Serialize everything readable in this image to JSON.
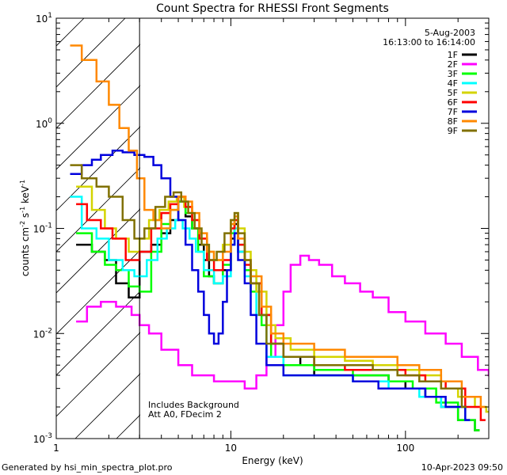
{
  "chart_data": {
    "type": "line",
    "title": "Count Spectra for RHESSI Front Segments",
    "xlabel": "Energy (keV)",
    "ylabel_parts": [
      "counts cm",
      "-2",
      " s",
      "-1",
      " keV",
      "-1"
    ],
    "xscale": "log",
    "yscale": "log",
    "xlim": [
      1,
      300
    ],
    "ylim": [
      0.001,
      10
    ],
    "x_ticks": [
      {
        "value": 1,
        "label": "1"
      },
      {
        "value": 10,
        "label": "10"
      },
      {
        "value": 100,
        "label": "100"
      }
    ],
    "y_ticks": [
      {
        "value": 10,
        "base": "10",
        "exp": "1"
      },
      {
        "value": 1,
        "base": "10",
        "exp": "0"
      },
      {
        "value": 0.1,
        "base": "10",
        "exp": "-1"
      },
      {
        "value": 0.01,
        "base": "10",
        "exp": "-2"
      },
      {
        "value": 0.001,
        "base": "10",
        "exp": "-3"
      }
    ],
    "date": "5-Aug-2003",
    "time_range": "16:13:00 to 16:14:00",
    "attenuator_cutoff_kev": 3,
    "annotation_lines": [
      "Includes Background",
      "Att A0, FDecim 2"
    ],
    "legend_position": "top-right",
    "series": [
      {
        "name": "1F",
        "color": "#000000",
        "points": [
          [
            1.3,
            0.07
          ],
          [
            1.6,
            0.06
          ],
          [
            1.9,
            0.05
          ],
          [
            2.2,
            0.03
          ],
          [
            2.6,
            0.022
          ],
          [
            3.0,
            0.06
          ],
          [
            3.5,
            0.07
          ],
          [
            4.0,
            0.09
          ],
          [
            4.5,
            0.12
          ],
          [
            5.0,
            0.18
          ],
          [
            5.5,
            0.13
          ],
          [
            6.0,
            0.1
          ],
          [
            6.5,
            0.07
          ],
          [
            7.0,
            0.05
          ],
          [
            7.5,
            0.035
          ],
          [
            8.0,
            0.03
          ],
          [
            9.0,
            0.04
          ],
          [
            10.0,
            0.08
          ],
          [
            10.5,
            0.11
          ],
          [
            11.0,
            0.06
          ],
          [
            12.0,
            0.04
          ],
          [
            13.0,
            0.03
          ],
          [
            15.0,
            0.015
          ],
          [
            17.0,
            0.008
          ],
          [
            20.0,
            0.006
          ],
          [
            25.0,
            0.005
          ],
          [
            30.0,
            0.004
          ],
          [
            40.0,
            0.004
          ],
          [
            60.0,
            0.004
          ],
          [
            80.0,
            0.0035
          ],
          [
            100.0,
            0.003
          ],
          [
            130.0,
            0.0025
          ],
          [
            160.0,
            0.002
          ],
          [
            200.0,
            0.0015
          ],
          [
            250.0,
            0.0012
          ]
        ]
      },
      {
        "name": "2F",
        "color": "#ff00ff",
        "points": [
          [
            1.3,
            0.013
          ],
          [
            1.5,
            0.018
          ],
          [
            1.8,
            0.02
          ],
          [
            2.2,
            0.018
          ],
          [
            2.7,
            0.015
          ],
          [
            3.0,
            0.012
          ],
          [
            3.4,
            0.01
          ],
          [
            4.0,
            0.007
          ],
          [
            5.0,
            0.005
          ],
          [
            6.0,
            0.004
          ],
          [
            7.0,
            0.004
          ],
          [
            8.0,
            0.0035
          ],
          [
            10.0,
            0.0035
          ],
          [
            12.0,
            0.003
          ],
          [
            14.0,
            0.004
          ],
          [
            16.0,
            0.006
          ],
          [
            18.0,
            0.012
          ],
          [
            20.0,
            0.025
          ],
          [
            22.0,
            0.045
          ],
          [
            25.0,
            0.055
          ],
          [
            28.0,
            0.05
          ],
          [
            32.0,
            0.045
          ],
          [
            38.0,
            0.035
          ],
          [
            45.0,
            0.03
          ],
          [
            55.0,
            0.025
          ],
          [
            65.0,
            0.022
          ],
          [
            80.0,
            0.016
          ],
          [
            100.0,
            0.013
          ],
          [
            130.0,
            0.01
          ],
          [
            170.0,
            0.008
          ],
          [
            210.0,
            0.006
          ],
          [
            260.0,
            0.0045
          ],
          [
            300.0,
            0.004
          ]
        ]
      },
      {
        "name": "3F",
        "color": "#00ff00",
        "points": [
          [
            1.3,
            0.09
          ],
          [
            1.6,
            0.06
          ],
          [
            1.9,
            0.045
          ],
          [
            2.2,
            0.04
          ],
          [
            2.6,
            0.028
          ],
          [
            3.0,
            0.025
          ],
          [
            3.5,
            0.06
          ],
          [
            4.0,
            0.11
          ],
          [
            4.5,
            0.15
          ],
          [
            5.0,
            0.18
          ],
          [
            5.5,
            0.14
          ],
          [
            6.0,
            0.1
          ],
          [
            6.5,
            0.06
          ],
          [
            7.0,
            0.035
          ],
          [
            8.0,
            0.03
          ],
          [
            9.0,
            0.045
          ],
          [
            10.0,
            0.09
          ],
          [
            10.5,
            0.12
          ],
          [
            11.0,
            0.07
          ],
          [
            12.0,
            0.04
          ],
          [
            13.0,
            0.025
          ],
          [
            15.0,
            0.012
          ],
          [
            17.0,
            0.006
          ],
          [
            20.0,
            0.005
          ],
          [
            30.0,
            0.0045
          ],
          [
            50.0,
            0.004
          ],
          [
            80.0,
            0.0035
          ],
          [
            110.0,
            0.003
          ],
          [
            150.0,
            0.0022
          ],
          [
            200.0,
            0.0015
          ],
          [
            250.0,
            0.0012
          ]
        ]
      },
      {
        "name": "4F",
        "color": "#00ffff",
        "points": [
          [
            1.2,
            0.2
          ],
          [
            1.4,
            0.1
          ],
          [
            1.7,
            0.08
          ],
          [
            2.0,
            0.05
          ],
          [
            2.4,
            0.04
          ],
          [
            2.8,
            0.035
          ],
          [
            3.3,
            0.05
          ],
          [
            3.8,
            0.08
          ],
          [
            4.3,
            0.1
          ],
          [
            4.8,
            0.12
          ],
          [
            5.3,
            0.1
          ],
          [
            5.8,
            0.08
          ],
          [
            6.3,
            0.06
          ],
          [
            7.0,
            0.04
          ],
          [
            8.0,
            0.03
          ],
          [
            9.0,
            0.035
          ],
          [
            10.0,
            0.07
          ],
          [
            10.5,
            0.1
          ],
          [
            11.0,
            0.06
          ],
          [
            12.0,
            0.035
          ],
          [
            14.0,
            0.015
          ],
          [
            16.0,
            0.006
          ],
          [
            20.0,
            0.004
          ],
          [
            30.0,
            0.004
          ],
          [
            50.0,
            0.0035
          ],
          [
            80.0,
            0.003
          ],
          [
            120.0,
            0.0025
          ],
          [
            160.0,
            0.002
          ],
          [
            220.0,
            0.0015
          ]
        ]
      },
      {
        "name": "5F",
        "color": "#d4d400",
        "points": [
          [
            1.3,
            0.25
          ],
          [
            1.6,
            0.15
          ],
          [
            1.9,
            0.1
          ],
          [
            2.2,
            0.08
          ],
          [
            2.6,
            0.06
          ],
          [
            3.0,
            0.08
          ],
          [
            3.4,
            0.12
          ],
          [
            3.9,
            0.15
          ],
          [
            4.4,
            0.18
          ],
          [
            4.9,
            0.2
          ],
          [
            5.4,
            0.16
          ],
          [
            6.0,
            0.12
          ],
          [
            6.6,
            0.08
          ],
          [
            7.3,
            0.06
          ],
          [
            8.0,
            0.05
          ],
          [
            9.0,
            0.07
          ],
          [
            10.0,
            0.12
          ],
          [
            10.5,
            0.14
          ],
          [
            11.0,
            0.1
          ],
          [
            12.0,
            0.06
          ],
          [
            13.0,
            0.04
          ],
          [
            14.0,
            0.025
          ],
          [
            16.0,
            0.012
          ],
          [
            18.0,
            0.009
          ],
          [
            22.0,
            0.007
          ],
          [
            30.0,
            0.006
          ],
          [
            45.0,
            0.0055
          ],
          [
            65.0,
            0.005
          ],
          [
            90.0,
            0.0045
          ],
          [
            120.0,
            0.004
          ],
          [
            160.0,
            0.003
          ],
          [
            200.0,
            0.0025
          ],
          [
            250.0,
            0.002
          ],
          [
            290.0,
            0.0018
          ]
        ]
      },
      {
        "name": "6F",
        "color": "#ff0000",
        "points": [
          [
            1.3,
            0.17
          ],
          [
            1.5,
            0.12
          ],
          [
            1.8,
            0.1
          ],
          [
            2.1,
            0.08
          ],
          [
            2.5,
            0.05
          ],
          [
            3.0,
            0.06
          ],
          [
            3.5,
            0.1
          ],
          [
            4.0,
            0.14
          ],
          [
            4.5,
            0.17
          ],
          [
            5.0,
            0.2
          ],
          [
            5.5,
            0.16
          ],
          [
            6.0,
            0.12
          ],
          [
            6.6,
            0.08
          ],
          [
            7.3,
            0.05
          ],
          [
            8.0,
            0.04
          ],
          [
            9.0,
            0.05
          ],
          [
            10.0,
            0.1
          ],
          [
            10.5,
            0.12
          ],
          [
            11.0,
            0.07
          ],
          [
            12.0,
            0.045
          ],
          [
            13.0,
            0.03
          ],
          [
            15.0,
            0.015
          ],
          [
            17.0,
            0.008
          ],
          [
            20.0,
            0.006
          ],
          [
            30.0,
            0.005
          ],
          [
            45.0,
            0.0045
          ],
          [
            70.0,
            0.0045
          ],
          [
            100.0,
            0.004
          ],
          [
            130.0,
            0.0035
          ],
          [
            170.0,
            0.003
          ],
          [
            220.0,
            0.002
          ],
          [
            270.0,
            0.0015
          ]
        ]
      },
      {
        "name": "7F",
        "color": "#0000dd",
        "points": [
          [
            1.2,
            0.33
          ],
          [
            1.4,
            0.4
          ],
          [
            1.6,
            0.45
          ],
          [
            1.8,
            0.5
          ],
          [
            2.1,
            0.55
          ],
          [
            2.4,
            0.53
          ],
          [
            2.8,
            0.5
          ],
          [
            3.2,
            0.48
          ],
          [
            3.6,
            0.4
          ],
          [
            4.0,
            0.3
          ],
          [
            4.5,
            0.2
          ],
          [
            5.0,
            0.12
          ],
          [
            5.5,
            0.07
          ],
          [
            6.0,
            0.04
          ],
          [
            6.5,
            0.025
          ],
          [
            7.0,
            0.015
          ],
          [
            7.5,
            0.01
          ],
          [
            8.0,
            0.008
          ],
          [
            8.5,
            0.01
          ],
          [
            9.0,
            0.02
          ],
          [
            9.5,
            0.04
          ],
          [
            10.0,
            0.07
          ],
          [
            10.5,
            0.09
          ],
          [
            11.0,
            0.05
          ],
          [
            12.0,
            0.03
          ],
          [
            13.0,
            0.015
          ],
          [
            14.0,
            0.008
          ],
          [
            16.0,
            0.005
          ],
          [
            20.0,
            0.004
          ],
          [
            30.0,
            0.004
          ],
          [
            50.0,
            0.0035
          ],
          [
            70.0,
            0.003
          ],
          [
            100.0,
            0.003
          ],
          [
            130.0,
            0.0025
          ],
          [
            170.0,
            0.002
          ],
          [
            220.0,
            0.0015
          ]
        ]
      },
      {
        "name": "8F",
        "color": "#ff8800",
        "points": [
          [
            1.2,
            5.5
          ],
          [
            1.4,
            4.0
          ],
          [
            1.7,
            2.5
          ],
          [
            2.0,
            1.5
          ],
          [
            2.3,
            0.9
          ],
          [
            2.6,
            0.55
          ],
          [
            2.9,
            0.3
          ],
          [
            3.2,
            0.15
          ],
          [
            3.6,
            0.12
          ],
          [
            4.0,
            0.1
          ],
          [
            4.5,
            0.15
          ],
          [
            5.0,
            0.2
          ],
          [
            5.5,
            0.18
          ],
          [
            6.0,
            0.14
          ],
          [
            6.6,
            0.09
          ],
          [
            7.3,
            0.06
          ],
          [
            8.0,
            0.05
          ],
          [
            9.0,
            0.06
          ],
          [
            10.0,
            0.11
          ],
          [
            10.5,
            0.13
          ],
          [
            11.0,
            0.08
          ],
          [
            12.0,
            0.05
          ],
          [
            13.0,
            0.035
          ],
          [
            15.0,
            0.018
          ],
          [
            17.0,
            0.01
          ],
          [
            20.0,
            0.008
          ],
          [
            30.0,
            0.007
          ],
          [
            45.0,
            0.006
          ],
          [
            65.0,
            0.006
          ],
          [
            90.0,
            0.005
          ],
          [
            120.0,
            0.0045
          ],
          [
            160.0,
            0.0035
          ],
          [
            210.0,
            0.0025
          ],
          [
            270.0,
            0.002
          ]
        ]
      },
      {
        "name": "9F",
        "color": "#807000",
        "points": [
          [
            1.2,
            0.4
          ],
          [
            1.4,
            0.3
          ],
          [
            1.7,
            0.25
          ],
          [
            2.0,
            0.2
          ],
          [
            2.4,
            0.12
          ],
          [
            2.8,
            0.08
          ],
          [
            3.2,
            0.1
          ],
          [
            3.7,
            0.16
          ],
          [
            4.2,
            0.2
          ],
          [
            4.7,
            0.22
          ],
          [
            5.2,
            0.18
          ],
          [
            5.7,
            0.14
          ],
          [
            6.2,
            0.1
          ],
          [
            6.8,
            0.07
          ],
          [
            7.5,
            0.05
          ],
          [
            8.3,
            0.06
          ],
          [
            9.2,
            0.09
          ],
          [
            10.0,
            0.12
          ],
          [
            10.5,
            0.14
          ],
          [
            11.0,
            0.09
          ],
          [
            12.0,
            0.05
          ],
          [
            13.0,
            0.03
          ],
          [
            14.5,
            0.015
          ],
          [
            16.0,
            0.008
          ],
          [
            20.0,
            0.006
          ],
          [
            30.0,
            0.005
          ],
          [
            45.0,
            0.005
          ],
          [
            65.0,
            0.0045
          ],
          [
            90.0,
            0.004
          ],
          [
            120.0,
            0.0035
          ],
          [
            160.0,
            0.003
          ],
          [
            210.0,
            0.002
          ]
        ]
      }
    ]
  },
  "footer": {
    "generated_by": "Generated by hsi_min_spectra_plot.pro",
    "timestamp": "10-Apr-2023 09:50"
  }
}
